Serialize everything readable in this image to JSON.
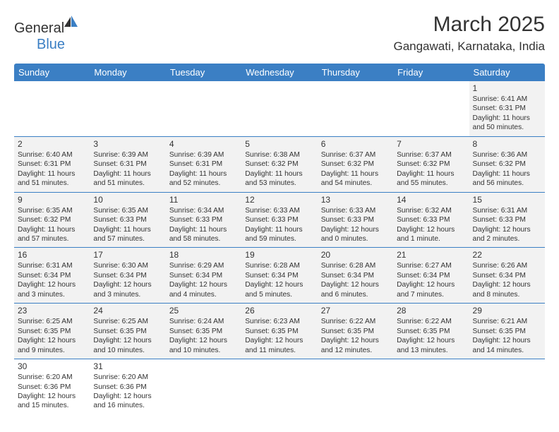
{
  "brand": {
    "part1": "General",
    "part2": "Blue"
  },
  "title": "March 2025",
  "location": "Gangawati, Karnataka, India",
  "colors": {
    "header_bg": "#3b7fc4",
    "header_text": "#ffffff",
    "shaded_bg": "#f2f2f2",
    "border": "#3b7fc4",
    "text": "#333333",
    "background": "#ffffff"
  },
  "day_headers": [
    "Sunday",
    "Monday",
    "Tuesday",
    "Wednesday",
    "Thursday",
    "Friday",
    "Saturday"
  ],
  "weeks": [
    [
      null,
      null,
      null,
      null,
      null,
      null,
      {
        "n": "1",
        "sr": "Sunrise: 6:41 AM",
        "ss": "Sunset: 6:31 PM",
        "dl": "Daylight: 11 hours and 50 minutes."
      }
    ],
    [
      {
        "n": "2",
        "sr": "Sunrise: 6:40 AM",
        "ss": "Sunset: 6:31 PM",
        "dl": "Daylight: 11 hours and 51 minutes."
      },
      {
        "n": "3",
        "sr": "Sunrise: 6:39 AM",
        "ss": "Sunset: 6:31 PM",
        "dl": "Daylight: 11 hours and 51 minutes."
      },
      {
        "n": "4",
        "sr": "Sunrise: 6:39 AM",
        "ss": "Sunset: 6:31 PM",
        "dl": "Daylight: 11 hours and 52 minutes."
      },
      {
        "n": "5",
        "sr": "Sunrise: 6:38 AM",
        "ss": "Sunset: 6:32 PM",
        "dl": "Daylight: 11 hours and 53 minutes."
      },
      {
        "n": "6",
        "sr": "Sunrise: 6:37 AM",
        "ss": "Sunset: 6:32 PM",
        "dl": "Daylight: 11 hours and 54 minutes."
      },
      {
        "n": "7",
        "sr": "Sunrise: 6:37 AM",
        "ss": "Sunset: 6:32 PM",
        "dl": "Daylight: 11 hours and 55 minutes."
      },
      {
        "n": "8",
        "sr": "Sunrise: 6:36 AM",
        "ss": "Sunset: 6:32 PM",
        "dl": "Daylight: 11 hours and 56 minutes."
      }
    ],
    [
      {
        "n": "9",
        "sr": "Sunrise: 6:35 AM",
        "ss": "Sunset: 6:32 PM",
        "dl": "Daylight: 11 hours and 57 minutes."
      },
      {
        "n": "10",
        "sr": "Sunrise: 6:35 AM",
        "ss": "Sunset: 6:33 PM",
        "dl": "Daylight: 11 hours and 57 minutes."
      },
      {
        "n": "11",
        "sr": "Sunrise: 6:34 AM",
        "ss": "Sunset: 6:33 PM",
        "dl": "Daylight: 11 hours and 58 minutes."
      },
      {
        "n": "12",
        "sr": "Sunrise: 6:33 AM",
        "ss": "Sunset: 6:33 PM",
        "dl": "Daylight: 11 hours and 59 minutes."
      },
      {
        "n": "13",
        "sr": "Sunrise: 6:33 AM",
        "ss": "Sunset: 6:33 PM",
        "dl": "Daylight: 12 hours and 0 minutes."
      },
      {
        "n": "14",
        "sr": "Sunrise: 6:32 AM",
        "ss": "Sunset: 6:33 PM",
        "dl": "Daylight: 12 hours and 1 minute."
      },
      {
        "n": "15",
        "sr": "Sunrise: 6:31 AM",
        "ss": "Sunset: 6:33 PM",
        "dl": "Daylight: 12 hours and 2 minutes."
      }
    ],
    [
      {
        "n": "16",
        "sr": "Sunrise: 6:31 AM",
        "ss": "Sunset: 6:34 PM",
        "dl": "Daylight: 12 hours and 3 minutes."
      },
      {
        "n": "17",
        "sr": "Sunrise: 6:30 AM",
        "ss": "Sunset: 6:34 PM",
        "dl": "Daylight: 12 hours and 3 minutes."
      },
      {
        "n": "18",
        "sr": "Sunrise: 6:29 AM",
        "ss": "Sunset: 6:34 PM",
        "dl": "Daylight: 12 hours and 4 minutes."
      },
      {
        "n": "19",
        "sr": "Sunrise: 6:28 AM",
        "ss": "Sunset: 6:34 PM",
        "dl": "Daylight: 12 hours and 5 minutes."
      },
      {
        "n": "20",
        "sr": "Sunrise: 6:28 AM",
        "ss": "Sunset: 6:34 PM",
        "dl": "Daylight: 12 hours and 6 minutes."
      },
      {
        "n": "21",
        "sr": "Sunrise: 6:27 AM",
        "ss": "Sunset: 6:34 PM",
        "dl": "Daylight: 12 hours and 7 minutes."
      },
      {
        "n": "22",
        "sr": "Sunrise: 6:26 AM",
        "ss": "Sunset: 6:34 PM",
        "dl": "Daylight: 12 hours and 8 minutes."
      }
    ],
    [
      {
        "n": "23",
        "sr": "Sunrise: 6:25 AM",
        "ss": "Sunset: 6:35 PM",
        "dl": "Daylight: 12 hours and 9 minutes."
      },
      {
        "n": "24",
        "sr": "Sunrise: 6:25 AM",
        "ss": "Sunset: 6:35 PM",
        "dl": "Daylight: 12 hours and 10 minutes."
      },
      {
        "n": "25",
        "sr": "Sunrise: 6:24 AM",
        "ss": "Sunset: 6:35 PM",
        "dl": "Daylight: 12 hours and 10 minutes."
      },
      {
        "n": "26",
        "sr": "Sunrise: 6:23 AM",
        "ss": "Sunset: 6:35 PM",
        "dl": "Daylight: 12 hours and 11 minutes."
      },
      {
        "n": "27",
        "sr": "Sunrise: 6:22 AM",
        "ss": "Sunset: 6:35 PM",
        "dl": "Daylight: 12 hours and 12 minutes."
      },
      {
        "n": "28",
        "sr": "Sunrise: 6:22 AM",
        "ss": "Sunset: 6:35 PM",
        "dl": "Daylight: 12 hours and 13 minutes."
      },
      {
        "n": "29",
        "sr": "Sunrise: 6:21 AM",
        "ss": "Sunset: 6:35 PM",
        "dl": "Daylight: 12 hours and 14 minutes."
      }
    ],
    [
      {
        "n": "30",
        "sr": "Sunrise: 6:20 AM",
        "ss": "Sunset: 6:36 PM",
        "dl": "Daylight: 12 hours and 15 minutes."
      },
      {
        "n": "31",
        "sr": "Sunrise: 6:20 AM",
        "ss": "Sunset: 6:36 PM",
        "dl": "Daylight: 12 hours and 16 minutes."
      },
      null,
      null,
      null,
      null,
      null
    ]
  ]
}
